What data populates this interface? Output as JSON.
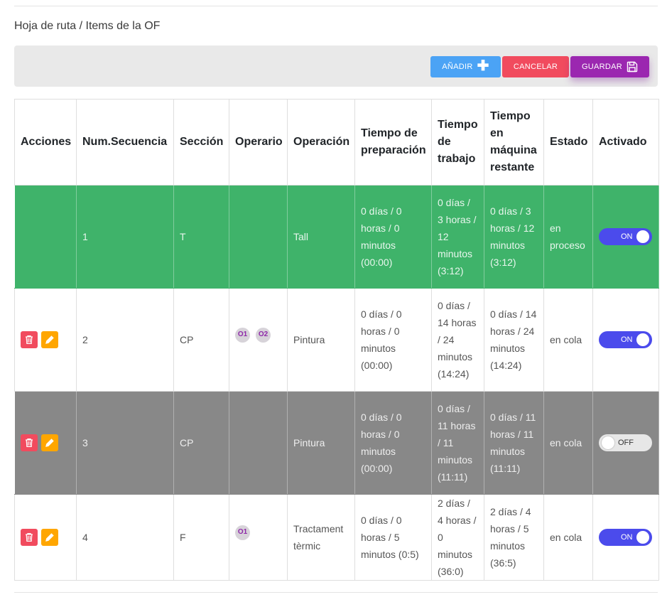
{
  "breadcrumb": "Hoja de ruta / Items de la OF",
  "toolbar": {
    "add_label": "AÑADIR",
    "cancel_label": "CANCELAR",
    "save_label": "GUARDAR"
  },
  "colors": {
    "add": "#4ba3f5",
    "cancel": "#f14b5e",
    "save": "#9b27b0",
    "row_in_process": "#3fb36a",
    "row_disabled": "#888888",
    "toggle_on": "#4b4bec"
  },
  "table": {
    "headers": {
      "acciones": "Acciones",
      "secuencia": "Num.Secuencia",
      "seccion": "Sección",
      "operario": "Operario",
      "operacion": "Operación",
      "preparacion": "Tiempo de preparación",
      "trabajo": "Tiempo de trabajo",
      "restante": "Tiempo en máquina restante",
      "estado": "Estado",
      "activado": "Activado"
    },
    "rows": [
      {
        "secuencia": "1",
        "seccion": "T",
        "operarios": [],
        "operacion": "Tall",
        "preparacion": "0 días / 0 horas / 0 minutos (00:00)",
        "trabajo": "0 días / 3 horas / 12 minutos (3:12)",
        "restante": "0 días / 3 horas / 12 minutos (3:12)",
        "estado": "en proceso",
        "activado": "ON"
      },
      {
        "secuencia": "2",
        "seccion": "CP",
        "operarios": [
          "O1",
          "O2"
        ],
        "operacion": "Pintura",
        "preparacion": "0 días / 0 horas / 0 minutos (00:00)",
        "trabajo": "0 días / 14 horas / 24 minutos (14:24)",
        "restante": "0 días / 14 horas / 24 minutos (14:24)",
        "estado": "en cola",
        "activado": "ON"
      },
      {
        "secuencia": "3",
        "seccion": "CP",
        "operarios": [],
        "operacion": "Pintura",
        "preparacion": "0 días / 0 horas / 0 minutos (00:00)",
        "trabajo": "0 días / 11 horas / 11 minutos (11:11)",
        "restante": "0 días / 11 horas / 11 minutos (11:11)",
        "estado": "en cola",
        "activado": "OFF"
      },
      {
        "secuencia": "4",
        "seccion": "F",
        "operarios": [
          "O1"
        ],
        "operacion": "Tractament tèrmic",
        "preparacion": "0 días / 0 horas / 5 minutos (0:5)",
        "trabajo": "2 días / 4 horas / 0 minutos (36:0)",
        "restante": "2 días / 4 horas / 5 minutos (36:5)",
        "estado": "en cola",
        "activado": "ON"
      }
    ]
  }
}
